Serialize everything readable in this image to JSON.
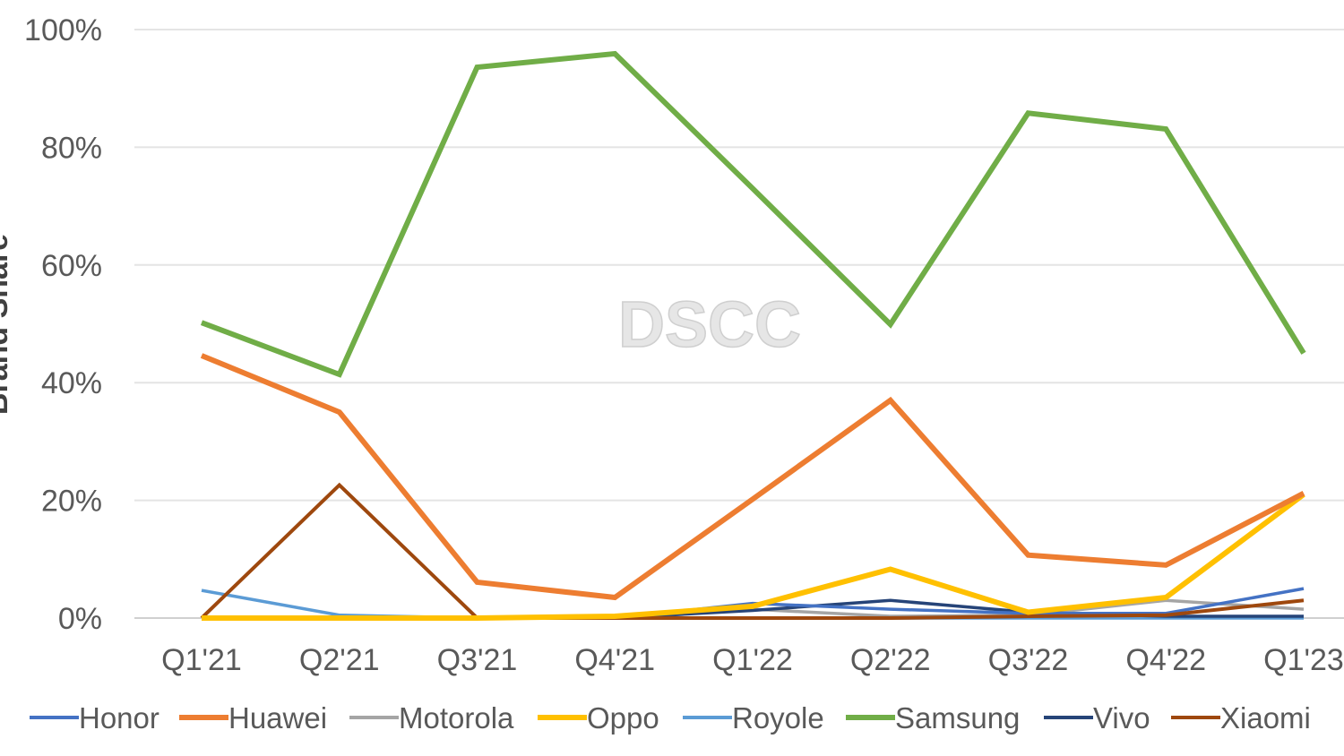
{
  "chart_data": {
    "type": "line",
    "title": "",
    "xlabel": "",
    "ylabel": "Brand Share",
    "watermark": "DSCC",
    "ylim": [
      0,
      100
    ],
    "y_ticks": [
      "0%",
      "20%",
      "40%",
      "60%",
      "80%",
      "100%"
    ],
    "y_tick_values": [
      0,
      20,
      40,
      60,
      80,
      100
    ],
    "grid": true,
    "legend_position": "bottom",
    "categories": [
      "Q1'21",
      "Q2'21",
      "Q3'21",
      "Q4'21",
      "Q1'22",
      "Q2'22",
      "Q3'22",
      "Q4'22",
      "Q1'23"
    ],
    "series": [
      {
        "name": "Honor",
        "color": "#4472C4",
        "values": [
          0,
          0,
          0,
          0,
          2.5,
          1.5,
          0.8,
          0.8,
          5
        ]
      },
      {
        "name": "Huawei",
        "color": "#ED7D31",
        "values": [
          44.6,
          35,
          6.1,
          3.5,
          20.2,
          37,
          10.7,
          9,
          21.2
        ]
      },
      {
        "name": "Motorola",
        "color": "#A5A5A5",
        "values": [
          0,
          0,
          0,
          0,
          1.5,
          0.3,
          0.5,
          3,
          1.5
        ]
      },
      {
        "name": "Oppo",
        "color": "#FFC000",
        "values": [
          0,
          0,
          0,
          0.3,
          2,
          8.3,
          1,
          3.5,
          21
        ]
      },
      {
        "name": "Royole",
        "color": "#5B9BD5",
        "values": [
          4.7,
          0.5,
          0,
          0,
          0,
          0,
          0,
          0,
          0
        ]
      },
      {
        "name": "Samsung",
        "color": "#70AD47",
        "values": [
          50.2,
          41.4,
          93.6,
          95.9,
          73,
          49.9,
          85.8,
          83.1,
          45
        ]
      },
      {
        "name": "Vivo",
        "color": "#264478",
        "values": [
          0,
          0,
          0,
          0,
          1.3,
          3,
          1,
          0.3,
          0.3
        ]
      },
      {
        "name": "Xiaomi",
        "color": "#9E480E",
        "values": [
          0,
          22.6,
          0,
          0,
          0,
          0,
          0.3,
          0.5,
          3
        ]
      }
    ]
  }
}
